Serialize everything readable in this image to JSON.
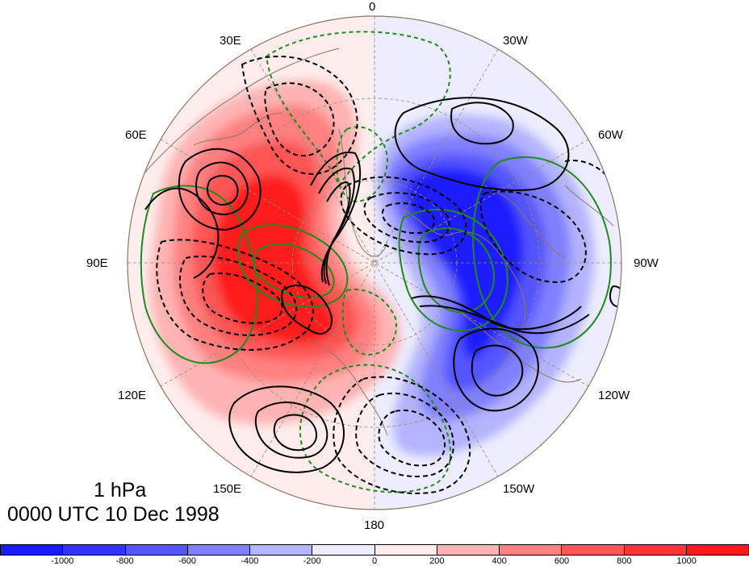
{
  "map": {
    "level_label": "1 hPa",
    "time_label": "0000 UTC 10 Dec 1998",
    "longitude_labels": [
      "0",
      "30W",
      "60W",
      "90W",
      "120W",
      "150W",
      "180",
      "150E",
      "120E",
      "90E",
      "60E",
      "30E"
    ]
  },
  "colorbar": {
    "colors": [
      "#1a1aff",
      "#3333ff",
      "#5555ff",
      "#8080ff",
      "#b3b3ff",
      "#ededff",
      "#ffeded",
      "#ffb3b3",
      "#ff8080",
      "#ff5555",
      "#ff3333",
      "#ff1a1a"
    ],
    "tick_labels": [
      "-1000",
      "-800",
      "-600",
      "-400",
      "-200",
      "0",
      "200",
      "400",
      "600",
      "800",
      "1000"
    ]
  },
  "colors": {
    "positive_fill": "#ff1a1a",
    "negative_fill": "#1a1aff",
    "contour": "#000000",
    "green_contour": "#1e8a1e",
    "coast": "#8b7765",
    "grid": "#a08870"
  }
}
